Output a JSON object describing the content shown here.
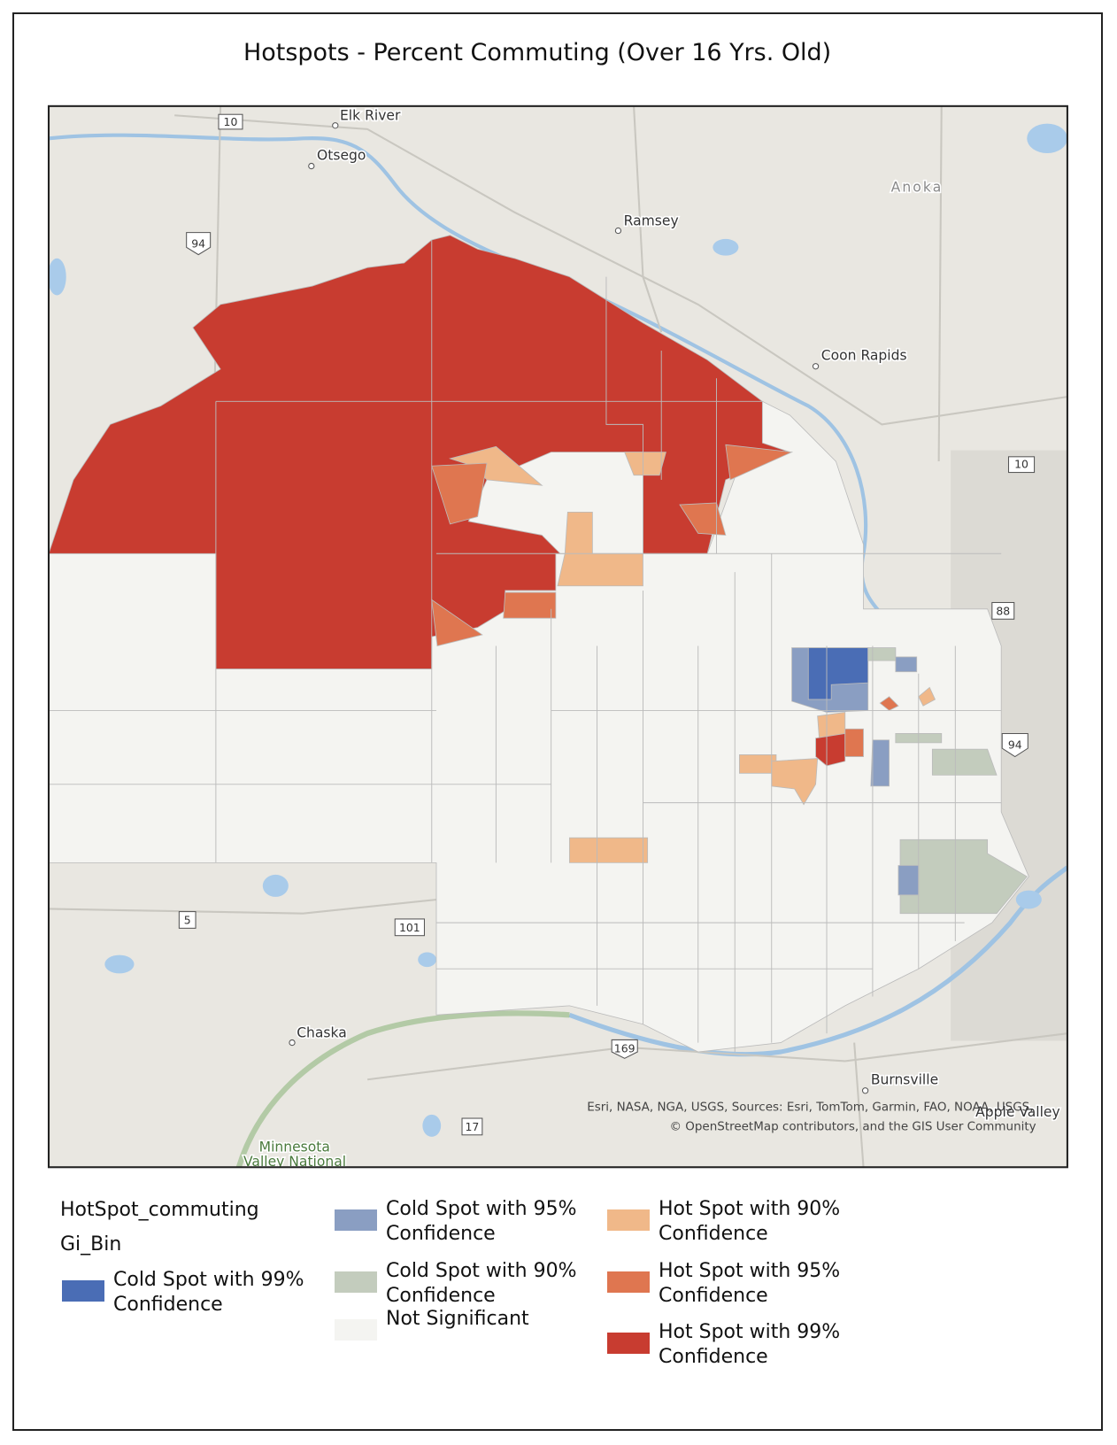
{
  "header": {
    "title": "Hotspots - Percent Commuting (Over 16 Yrs. Old)"
  },
  "map": {
    "places": [
      "Elk River",
      "Otsego",
      "Ramsey",
      "Anoka",
      "Coon Rapids",
      "Chaska",
      "Burnsville",
      "Apple Valley",
      "Minnesota",
      "Valley National"
    ],
    "shields": [
      "10",
      "94",
      "10",
      "88",
      "94",
      "5",
      "101",
      "169",
      "17"
    ],
    "attribution": [
      "Esri, NASA, NGA, USGS, Sources: Esri, TomTom, Garmin, FAO, NOAA, USGS,",
      "© OpenStreetMap contributors, and the GIS User Community"
    ]
  },
  "legend": {
    "layer": "HotSpot_commuting",
    "field": "Gi_Bin",
    "items": [
      {
        "label": "Cold Spot with 99% Confidence",
        "color": "#4a6db5"
      },
      {
        "label": "Cold Spot with 95% Confidence",
        "color": "#8a9ec2"
      },
      {
        "label": "Cold Spot with 90% Confidence",
        "color": "#c3ccbd"
      },
      {
        "label": "Not Significant",
        "color": "#f4f4f1"
      },
      {
        "label": "Hot Spot with 90% Confidence",
        "color": "#f0b889"
      },
      {
        "label": "Hot Spot with 95% Confidence",
        "color": "#df7650"
      },
      {
        "label": "Hot Spot with 99% Confidence",
        "color": "#c83c30"
      }
    ]
  }
}
